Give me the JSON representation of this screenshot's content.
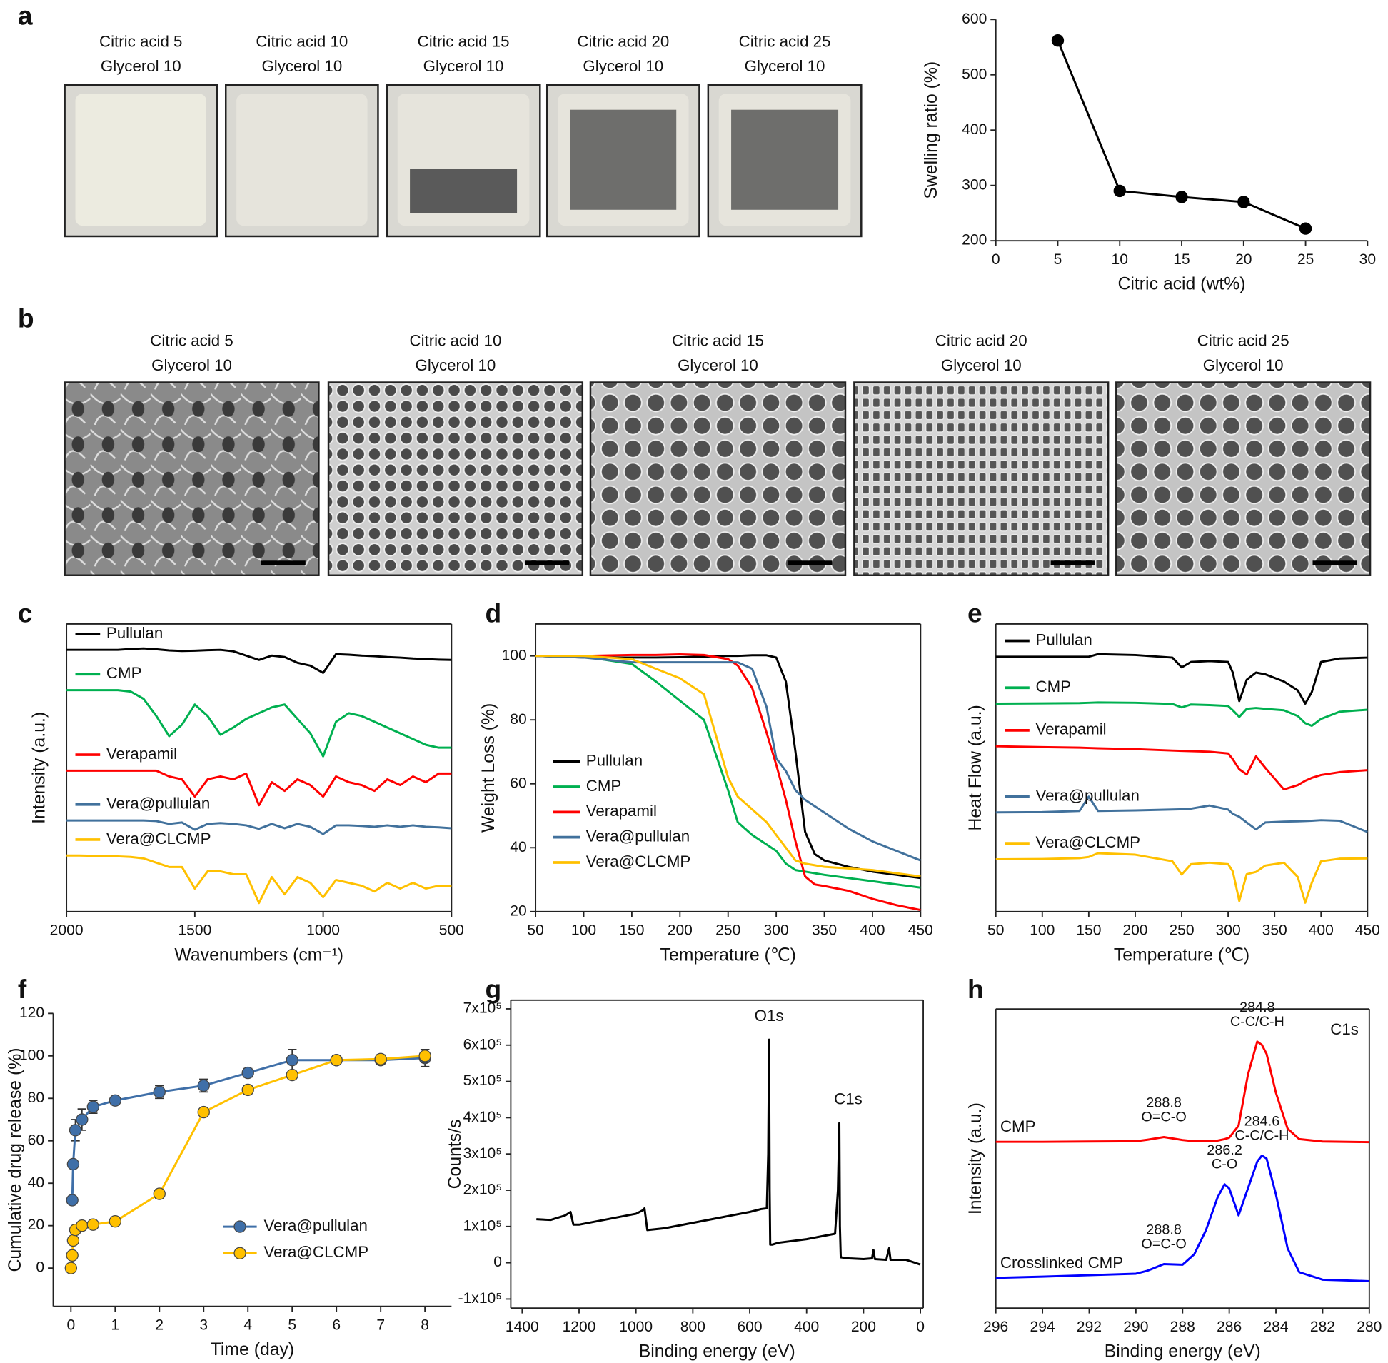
{
  "photo_panels": [
    {
      "panel": "a",
      "captions": [
        [
          "Citric acid 5",
          "Glycerol 10"
        ],
        [
          "Citric acid 10",
          "Glycerol 10"
        ],
        [
          "Citric acid 15",
          "Glycerol 10"
        ],
        [
          "Citric acid 20",
          "Glycerol 10"
        ],
        [
          "Citric acid 25",
          "Glycerol 10"
        ]
      ]
    },
    {
      "panel": "b",
      "captions": [
        [
          "Citric acid 5",
          "Glycerol 10"
        ],
        [
          "Citric acid 10",
          "Glycerol 10"
        ],
        [
          "Citric acid 15",
          "Glycerol 10"
        ],
        [
          "Citric acid 20",
          "Glycerol 10"
        ],
        [
          "Citric acid 25",
          "Glycerol 10"
        ]
      ]
    }
  ],
  "chart_data": [
    {
      "type": "line",
      "xlabel": "Citric acid (wt%)",
      "ylabel": "Swelling ratio (%)",
      "x": [
        5,
        10,
        15,
        20,
        25
      ],
      "values": [
        562,
        290,
        279,
        270,
        222
      ],
      "color": "#000000",
      "markers": true,
      "frame": false,
      "xlim": [
        0,
        30
      ],
      "xticks": [
        0,
        5,
        10,
        15,
        20,
        25,
        30
      ],
      "ylim": [
        200,
        600
      ],
      "yticks": [
        200,
        300,
        400,
        500,
        600
      ]
    },
    {
      "type": "line",
      "panel": "c",
      "xlabel": "Wavenumbers (cm⁻¹)",
      "ylabel": "Intensity (a.u.)",
      "frame": true,
      "legend": "inline",
      "xlim": [
        2000,
        500
      ],
      "xticks": [
        2000,
        1500,
        1000,
        500
      ],
      "ylim": [
        0,
        100
      ],
      "x": [
        2000,
        1950,
        1900,
        1850,
        1800,
        1750,
        1700,
        1650,
        1600,
        1550,
        1500,
        1450,
        1400,
        1350,
        1300,
        1250,
        1200,
        1150,
        1100,
        1050,
        1000,
        950,
        900,
        850,
        800,
        750,
        700,
        650,
        600,
        550,
        500
      ],
      "series": [
        {
          "name": "Pullulan",
          "color": "#000000",
          "values": [
            91,
            91,
            91,
            91,
            91,
            91.3,
            91.5,
            91.2,
            90.8,
            90.6,
            90.7,
            90.9,
            91,
            90.5,
            89,
            87.5,
            89,
            88.5,
            86.5,
            85.5,
            83,
            89.5,
            89.3,
            89,
            88.8,
            88.5,
            88.3,
            88,
            87.8,
            87.6,
            87.5
          ]
        },
        {
          "name": "CMP",
          "color": "#00b050",
          "values": [
            77,
            77,
            77,
            77,
            77,
            76.5,
            74,
            68,
            61,
            65,
            72,
            68,
            61.5,
            64,
            67,
            69,
            71,
            72,
            67,
            62,
            54,
            66,
            69,
            68,
            66,
            64,
            62,
            60,
            58,
            57,
            57
          ]
        },
        {
          "name": "Verapamil",
          "color": "#ff0000",
          "values": [
            49,
            49,
            49,
            49,
            49,
            49,
            49,
            49,
            47,
            46,
            40,
            46,
            47,
            46,
            48,
            37,
            45,
            42,
            46,
            44,
            40,
            47,
            45,
            44,
            42,
            46,
            44,
            47,
            45,
            48,
            48
          ]
        },
        {
          "name": "Vera@pullulan",
          "color": "#41719c",
          "values": [
            31.7,
            31.7,
            31.7,
            31.7,
            31.7,
            31.7,
            31.7,
            31.5,
            30.5,
            31,
            28.5,
            30.5,
            30.8,
            30.5,
            30,
            28.8,
            30.5,
            29,
            30.5,
            29.5,
            27,
            30,
            30,
            29.8,
            29.5,
            30,
            29.5,
            30,
            29.5,
            29.3,
            29
          ]
        },
        {
          "name": "Vera@CLCMP",
          "color": "#ffc000",
          "values": [
            19.5,
            19.5,
            19.4,
            19.3,
            19.2,
            19,
            18.5,
            17,
            15.5,
            15.5,
            8,
            14,
            14,
            13,
            13,
            3,
            12,
            6,
            12,
            10,
            5,
            11,
            10,
            9,
            7,
            10,
            8,
            10,
            8,
            9,
            9
          ]
        }
      ]
    },
    {
      "type": "line",
      "panel": "d",
      "xlabel": "Temperature (℃)",
      "ylabel": "Weight Loss (%)",
      "frame": true,
      "legend": "center left",
      "xlim": [
        50,
        450
      ],
      "xticks": [
        50,
        100,
        150,
        200,
        250,
        300,
        350,
        400,
        450
      ],
      "ylim": [
        20,
        110
      ],
      "yticks": [
        20,
        40,
        60,
        80,
        100
      ],
      "x": [
        50,
        100,
        150,
        175,
        200,
        225,
        250,
        260,
        275,
        290,
        300,
        310,
        320,
        330,
        340,
        350,
        375,
        400,
        425,
        450
      ],
      "series": [
        {
          "name": "Pullulan",
          "color": "#000000",
          "values": [
            100,
            99.5,
            99.5,
            99.5,
            99.6,
            99.8,
            100,
            100,
            100.2,
            100.2,
            99.5,
            92,
            70,
            45,
            38,
            36,
            34,
            32.5,
            31.5,
            30.5
          ]
        },
        {
          "name": "CMP",
          "color": "#00b050",
          "values": [
            100,
            99.8,
            97.5,
            92,
            86,
            80,
            58,
            48,
            44,
            41,
            39,
            35,
            33,
            32.5,
            32,
            31.5,
            30.5,
            29.5,
            28.5,
            27.5
          ]
        },
        {
          "name": "Verapamil",
          "color": "#ff0000",
          "values": [
            100,
            100,
            100.3,
            100.3,
            100.5,
            100.3,
            99,
            97,
            90,
            76,
            66,
            55,
            42,
            31,
            28.5,
            28,
            26.5,
            24,
            22,
            20.5
          ]
        },
        {
          "name": "Vera@pullulan",
          "color": "#41719c",
          "values": [
            100,
            99.5,
            98,
            98,
            98,
            98,
            98,
            98,
            96,
            84,
            68,
            64,
            58,
            55,
            53,
            51,
            46,
            42,
            39,
            36
          ]
        },
        {
          "name": "Vera@CLCMP",
          "color": "#ffc000",
          "values": [
            100,
            100,
            99,
            96,
            93,
            88,
            62,
            56,
            52,
            48,
            44,
            40,
            36,
            35,
            34.5,
            34,
            33.5,
            33,
            32,
            31
          ]
        }
      ]
    },
    {
      "type": "line",
      "panel": "e",
      "xlabel": "Temperature (℃)",
      "ylabel": "Heat Flow (a.u.)",
      "frame": true,
      "legend": "inline",
      "xlim": [
        50,
        450
      ],
      "xticks": [
        50,
        100,
        150,
        200,
        250,
        300,
        350,
        400,
        450
      ],
      "ylim": [
        0,
        100
      ],
      "x": [
        50,
        100,
        140,
        150,
        160,
        200,
        240,
        250,
        260,
        280,
        300,
        305,
        312,
        320,
        330,
        340,
        360,
        375,
        383,
        390,
        400,
        420,
        450
      ],
      "series": [
        {
          "name": "Pullulan",
          "color": "#000000",
          "values": [
            88.6,
            88.6,
            88.6,
            88.6,
            89.5,
            89.2,
            88.3,
            84.9,
            86.8,
            87.1,
            86.8,
            83.1,
            73.2,
            80.6,
            83.1,
            82.5,
            80,
            76.9,
            72.3,
            76.3,
            86.8,
            88,
            88.3
          ]
        },
        {
          "name": "CMP",
          "color": "#00b050",
          "values": [
            72.3,
            72.4,
            72.5,
            72.6,
            72.7,
            72.6,
            72.2,
            71,
            72,
            71.8,
            71.5,
            70,
            67.7,
            70.5,
            70.8,
            70.5,
            70,
            68,
            65.5,
            64.6,
            67,
            69.5,
            70.2
          ]
        },
        {
          "name": "Verapamil",
          "color": "#ff0000",
          "values": [
            57.5,
            57.2,
            57,
            56.9,
            56.8,
            56.5,
            56,
            55.9,
            55.8,
            55.6,
            55,
            53,
            49.5,
            47.7,
            54,
            50,
            42.5,
            44,
            45.5,
            46.5,
            47.5,
            48.5,
            49.2
          ]
        },
        {
          "name": "Vera@pullulan",
          "color": "#41719c",
          "values": [
            34.5,
            34.6,
            35,
            40,
            35,
            35.2,
            35.5,
            35.6,
            35.8,
            36.9,
            35.5,
            34,
            33,
            31,
            28.6,
            31,
            31.3,
            31.4,
            31.5,
            31.6,
            31.8,
            31.6,
            27.7
          ]
        },
        {
          "name": "Vera@CLCMP",
          "color": "#ffc000",
          "values": [
            18.2,
            18.3,
            18.6,
            19,
            20.3,
            19.8,
            17.5,
            12.9,
            16.5,
            17,
            16.5,
            14,
            3.7,
            13,
            13.8,
            16,
            17,
            12,
            3.1,
            10,
            17.5,
            18.4,
            18.5
          ]
        }
      ]
    },
    {
      "type": "line",
      "panel": "f",
      "xlabel": "Time (day)",
      "ylabel": "Cumulative drug release (%)",
      "frame": false,
      "markers": true,
      "legend": "lower right",
      "xlim": [
        -0.4,
        8.6
      ],
      "xticks": [
        0,
        1,
        2,
        3,
        4,
        5,
        6,
        7,
        8
      ],
      "ylim": [
        -18,
        120
      ],
      "yticks": [
        0,
        20,
        40,
        60,
        80,
        100,
        120
      ],
      "series": [
        {
          "name": "Vera@pullulan",
          "color": "#3f6fa8",
          "x": [
            0.03,
            0.05,
            0.1,
            0.25,
            0.5,
            1,
            2,
            3,
            4,
            5,
            6,
            7,
            8
          ],
          "values": [
            32,
            49,
            65,
            70,
            76,
            79,
            83,
            86,
            92,
            98,
            98,
            98,
            99
          ],
          "errors": [
            0,
            0,
            5,
            5,
            3,
            1,
            3,
            3,
            2,
            5,
            2,
            2,
            4
          ]
        },
        {
          "name": "Vera@CLCMP",
          "color": "#ffc000",
          "x": [
            0,
            0.03,
            0.05,
            0.1,
            0.25,
            0.5,
            1,
            2,
            3,
            4,
            5,
            6,
            7,
            8
          ],
          "values": [
            0,
            6,
            13,
            18,
            20,
            20.5,
            22,
            35,
            73.5,
            84,
            91,
            98,
            98.5,
            100
          ],
          "errors": [
            0,
            0,
            0,
            0,
            0,
            1,
            1,
            2,
            1,
            2,
            2,
            2,
            2,
            3
          ]
        }
      ]
    },
    {
      "type": "line",
      "panel": "g",
      "xlabel": "Binding energy (eV)",
      "ylabel": "Counts/s",
      "frame": true,
      "xlim": [
        1440,
        -10
      ],
      "xticks": [
        1400,
        1200,
        1000,
        800,
        600,
        400,
        200,
        0
      ],
      "ylim": [
        -125000,
        724000
      ],
      "yticks": [
        {
          "value": -100000,
          "label": "-1x10⁵"
        },
        0,
        {
          "value": 100000,
          "label": "1x10⁵"
        },
        {
          "value": 200000,
          "label": "2x10⁵"
        },
        {
          "value": 300000,
          "label": "3x10⁵"
        },
        {
          "value": 400000,
          "label": "4x10⁵"
        },
        {
          "value": 500000,
          "label": "5x10⁵"
        },
        {
          "value": 600000,
          "label": "6x10⁵"
        },
        {
          "value": 700000,
          "label": "7x10⁵"
        }
      ],
      "x": [
        1350,
        1300,
        1250,
        1230,
        1220,
        1200,
        1100,
        1000,
        975,
        970,
        960,
        900,
        800,
        700,
        600,
        560,
        540,
        535,
        532,
        530,
        528,
        520,
        500,
        400,
        300,
        290,
        285,
        283,
        280,
        250,
        200,
        170,
        165,
        160,
        120,
        110,
        105,
        50,
        0
      ],
      "series": [
        {
          "color": "#000000",
          "values": [
            120000,
            118000,
            130000,
            140000,
            105000,
            105000,
            120000,
            135000,
            145000,
            150000,
            90000,
            95000,
            110000,
            125000,
            140000,
            148000,
            150000,
            300000,
            615000,
            200000,
            50000,
            50000,
            55000,
            65000,
            80000,
            200000,
            385000,
            100000,
            15000,
            12000,
            10000,
            12000,
            35000,
            10000,
            8000,
            40000,
            8000,
            8000,
            -5000
          ]
        }
      ],
      "peaks": [
        {
          "label": "O1s",
          "x": 532
        },
        {
          "label": "C1s",
          "x": 285
        }
      ]
    },
    {
      "type": "line",
      "panel": "h",
      "xlabel": "Binding energy (eV)",
      "ylabel": "Intensity (a.u.)",
      "annotation": "C1s",
      "frame": true,
      "legend": "inline-text",
      "xlim": [
        296,
        280
      ],
      "xticks": [
        296,
        294,
        292,
        290,
        288,
        286,
        284,
        282,
        280
      ],
      "ylim": [
        0,
        100
      ],
      "x": [
        296,
        294,
        292,
        290,
        289.5,
        288.8,
        288,
        287.5,
        287,
        286.5,
        286.2,
        286,
        285.6,
        285.2,
        284.8,
        284.6,
        284.4,
        284,
        283.5,
        283,
        282,
        280
      ],
      "series": [
        {
          "name": "CMP",
          "color": "#ff0000",
          "values": [
            55.6,
            55.6,
            55.7,
            55.8,
            56.3,
            57.2,
            56.2,
            55.8,
            55.8,
            56,
            56.5,
            57,
            61,
            78,
            89.1,
            88,
            85,
            72,
            60,
            56.5,
            55.7,
            55.5
          ],
          "peaks": [
            {
              "x": 284.8,
              "label": "C-C/C-H"
            },
            {
              "x": 288.8,
              "label": "O=C-O"
            }
          ]
        },
        {
          "name": "Crosslinked CMP",
          "color": "#0000ff",
          "values": [
            10.1,
            10.5,
            11,
            11.5,
            12.5,
            14.7,
            14.5,
            18,
            26,
            37,
            41.4,
            40,
            31,
            40,
            49,
            51,
            50,
            38,
            20,
            12,
            9.5,
            9
          ],
          "peaks": [
            {
              "x": 284.6,
              "label": "C-C/C-H"
            },
            {
              "x": 286.2,
              "label": "C-O"
            },
            {
              "x": 288.8,
              "label": "O=C-O"
            }
          ]
        }
      ]
    }
  ]
}
